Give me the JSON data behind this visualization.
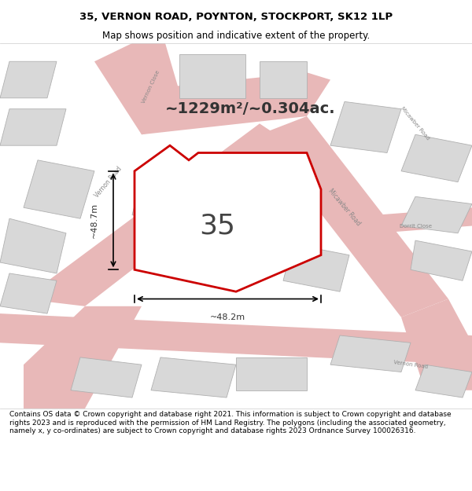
{
  "title_line1": "35, VERNON ROAD, POYNTON, STOCKPORT, SK12 1LP",
  "title_line2": "Map shows position and indicative extent of the property.",
  "area_text": "~1229m²/~0.304ac.",
  "label_35": "35",
  "label_height": "~48.7m",
  "label_width": "~48.2m",
  "footer": "Contains OS data © Crown copyright and database right 2021. This information is subject to Crown copyright and database rights 2023 and is reproduced with the permission of HM Land Registry. The polygons (including the associated geometry, namely x, y co-ordinates) are subject to Crown copyright and database rights 2023 Ordnance Survey 100026316.",
  "bg_color": "#f0eeeb",
  "map_bg": "#f0eeeb",
  "road_color": "#e8b8b8",
  "road_outline": "#d08080",
  "building_color": "#d8d8d8",
  "building_outline": "#b0b0b0",
  "plot_color": "#ffffff",
  "plot_outline": "#cc0000",
  "footer_bg": "#ffffff",
  "title_bg": "#ffffff"
}
